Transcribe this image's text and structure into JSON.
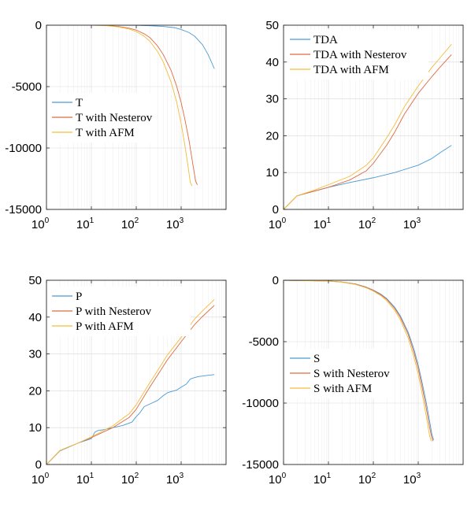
{
  "colors": {
    "series1": "#4a9ad6",
    "series2": "#de6a42",
    "series3": "#f2be3b"
  },
  "chart_data": [
    {
      "id": "T",
      "type": "line",
      "xscale": "log",
      "xlim": [
        1,
        10000
      ],
      "ylim": [
        -15000,
        0
      ],
      "yticks": [
        0,
        -5000,
        -10000,
        -15000
      ],
      "ytick_labels": [
        "0",
        "-5000",
        "-10000",
        "-15000"
      ],
      "xticks": [
        1,
        10,
        100,
        1000
      ],
      "xtick_bases": [
        "10",
        "10",
        "10",
        "10"
      ],
      "xtick_exps": [
        "0",
        "1",
        "2",
        "3"
      ],
      "grid": true,
      "legend_position": "middle-left",
      "series": [
        {
          "name": "T",
          "color": "#4a9ad6",
          "x": [
            1,
            10,
            100,
            200,
            400,
            700,
            1000,
            1500,
            2000,
            3000,
            4000,
            5500
          ],
          "y": [
            0,
            0,
            -10,
            -40,
            -100,
            -200,
            -350,
            -600,
            -900,
            -1600,
            -2400,
            -3550
          ]
        },
        {
          "name": "T with Nesterov",
          "color": "#de6a42",
          "x": [
            1,
            10,
            20,
            40,
            70,
            100,
            150,
            200,
            300,
            400,
            600,
            800,
            1000,
            1200,
            1500,
            1800,
            2100,
            2300
          ],
          "y": [
            0,
            0,
            -20,
            -100,
            -250,
            -400,
            -700,
            -1000,
            -1700,
            -2400,
            -3700,
            -5000,
            -6300,
            -7600,
            -9400,
            -11200,
            -12700,
            -13000
          ]
        },
        {
          "name": "T with AFM",
          "color": "#f2be3b",
          "x": [
            1,
            10,
            20,
            40,
            70,
            100,
            150,
            200,
            300,
            400,
            600,
            800,
            1000,
            1200,
            1400,
            1600,
            1750
          ],
          "y": [
            0,
            0,
            -30,
            -140,
            -320,
            -520,
            -900,
            -1300,
            -2150,
            -3000,
            -4650,
            -6300,
            -8000,
            -9700,
            -11300,
            -12800,
            -13100
          ]
        }
      ]
    },
    {
      "id": "TDA",
      "type": "line",
      "xscale": "log",
      "xlim": [
        1,
        10000
      ],
      "ylim": [
        0,
        50
      ],
      "yticks": [
        0,
        10,
        20,
        30,
        40,
        50
      ],
      "ytick_labels": [
        "0",
        "10",
        "20",
        "30",
        "40",
        "50"
      ],
      "xticks": [
        1,
        10,
        100,
        1000
      ],
      "xtick_bases": [
        "10",
        "10",
        "10",
        "10"
      ],
      "xtick_exps": [
        "0",
        "1",
        "2",
        "3"
      ],
      "grid": true,
      "legend_position": "top-left",
      "series": [
        {
          "name": "TDA",
          "color": "#4a9ad6",
          "x": [
            1,
            2,
            5,
            10,
            30,
            100,
            300,
            1000,
            2000,
            3000,
            5500
          ],
          "y": [
            0,
            3.7,
            5,
            6,
            7.3,
            8.6,
            10,
            12,
            13.8,
            15.3,
            17.4
          ]
        },
        {
          "name": "TDA with Nesterov",
          "color": "#de6a42",
          "x": [
            1,
            2,
            5,
            10,
            30,
            70,
            100,
            200,
            300,
            500,
            1000,
            2000,
            3000,
            5500
          ],
          "y": [
            0,
            3.7,
            5,
            6,
            8,
            10.5,
            12.5,
            17.5,
            21,
            26,
            31.5,
            36,
            38.5,
            42
          ]
        },
        {
          "name": "TDA with AFM",
          "color": "#f2be3b",
          "x": [
            1,
            2,
            5,
            10,
            30,
            70,
            100,
            200,
            300,
            500,
            1000,
            2000,
            3000,
            5500
          ],
          "y": [
            0,
            3.7,
            5.3,
            6.7,
            9,
            12,
            14,
            19.5,
            23,
            28,
            33.5,
            38.5,
            41,
            44.8
          ]
        }
      ]
    },
    {
      "id": "P",
      "type": "line",
      "xscale": "log",
      "xlim": [
        1,
        10000
      ],
      "ylim": [
        0,
        50
      ],
      "yticks": [
        0,
        10,
        20,
        30,
        40,
        50
      ],
      "ytick_labels": [
        "0",
        "10",
        "20",
        "30",
        "40",
        "50"
      ],
      "xticks": [
        1,
        10,
        100,
        1000
      ],
      "xtick_bases": [
        "10",
        "10",
        "10",
        "10"
      ],
      "xtick_exps": [
        "0",
        "1",
        "2",
        "3"
      ],
      "grid": true,
      "legend_position": "top-left",
      "series": [
        {
          "name": "P",
          "color": "#4a9ad6",
          "x": [
            1,
            2,
            3,
            5,
            10,
            12,
            14,
            20,
            30,
            50,
            80,
            100,
            120,
            150,
            200,
            300,
            400,
            500,
            800,
            1000,
            1300,
            1600,
            2000,
            2500,
            3000,
            4000,
            5500
          ],
          "y": [
            0,
            3.7,
            4.6,
            5.8,
            7,
            8.8,
            9.2,
            9.5,
            10,
            10.6,
            11.5,
            13,
            14,
            15.7,
            16.4,
            17.4,
            18.7,
            19.5,
            20.2,
            21,
            21.8,
            23.2,
            23.6,
            23.9,
            24,
            24.2,
            24.4
          ]
        },
        {
          "name": "P with Nesterov",
          "color": "#de6a42",
          "x": [
            1,
            2,
            5,
            10,
            30,
            70,
            100,
            200,
            300,
            500,
            1000,
            2000,
            3000,
            5500
          ],
          "y": [
            0,
            3.8,
            5.8,
            7.3,
            10,
            12.8,
            15,
            21,
            24.3,
            28.5,
            33.3,
            38,
            40.2,
            43.2
          ]
        },
        {
          "name": "P with AFM",
          "color": "#f2be3b",
          "x": [
            1,
            2,
            5,
            10,
            30,
            70,
            100,
            200,
            300,
            500,
            1000,
            2000,
            3000,
            5500
          ],
          "y": [
            0,
            3.8,
            5.8,
            7.5,
            10.5,
            13.8,
            16.2,
            22.2,
            25.5,
            29.8,
            34.5,
            39.5,
            41.7,
            44.8
          ]
        }
      ]
    },
    {
      "id": "S",
      "type": "line",
      "xscale": "log",
      "xlim": [
        1,
        10000
      ],
      "ylim": [
        -15000,
        0
      ],
      "yticks": [
        0,
        -5000,
        -10000,
        -15000
      ],
      "ytick_labels": [
        "0",
        "-5000",
        "-10000",
        "-15000"
      ],
      "xticks": [
        1,
        10,
        100,
        1000
      ],
      "xtick_bases": [
        "10",
        "10",
        "10",
        "10"
      ],
      "xtick_exps": [
        "0",
        "1",
        "2",
        "3"
      ],
      "grid": true,
      "legend_position": "bottom-left",
      "series": [
        {
          "name": "S",
          "color": "#4a9ad6",
          "x": [
            1,
            10,
            20,
            40,
            70,
            100,
            150,
            200,
            300,
            400,
            600,
            800,
            1000,
            1200,
            1500,
            1800,
            2000,
            2200
          ],
          "y": [
            0,
            -60,
            -140,
            -300,
            -560,
            -800,
            -1150,
            -1500,
            -2200,
            -2900,
            -4250,
            -5600,
            -6900,
            -8200,
            -9900,
            -11500,
            -12500,
            -13000
          ]
        },
        {
          "name": "S with Nesterov",
          "color": "#de6a42",
          "x": [
            1,
            10,
            20,
            40,
            70,
            100,
            150,
            200,
            300,
            400,
            600,
            800,
            1000,
            1200,
            1500,
            1800,
            2000,
            2150
          ],
          "y": [
            0,
            -60,
            -145,
            -310,
            -580,
            -830,
            -1200,
            -1560,
            -2300,
            -3020,
            -4420,
            -5850,
            -7200,
            -8550,
            -10350,
            -12000,
            -12800,
            -13100
          ]
        },
        {
          "name": "S with AFM",
          "color": "#f2be3b",
          "x": [
            1,
            10,
            20,
            40,
            70,
            100,
            150,
            200,
            300,
            400,
            600,
            800,
            1000,
            1200,
            1500,
            1800,
            1950
          ],
          "y": [
            0,
            -70,
            -160,
            -340,
            -620,
            -880,
            -1280,
            -1680,
            -2450,
            -3220,
            -4720,
            -6230,
            -7650,
            -9080,
            -11000,
            -12700,
            -13100
          ]
        }
      ]
    }
  ],
  "legends": [
    [
      "T",
      "T with Nesterov",
      "T with AFM"
    ],
    [
      "TDA",
      "TDA with Nesterov",
      "TDA with AFM"
    ],
    [
      "P",
      "P with Nesterov",
      "P with AFM"
    ],
    [
      "S",
      "S with Nesterov",
      "S with AFM"
    ]
  ]
}
